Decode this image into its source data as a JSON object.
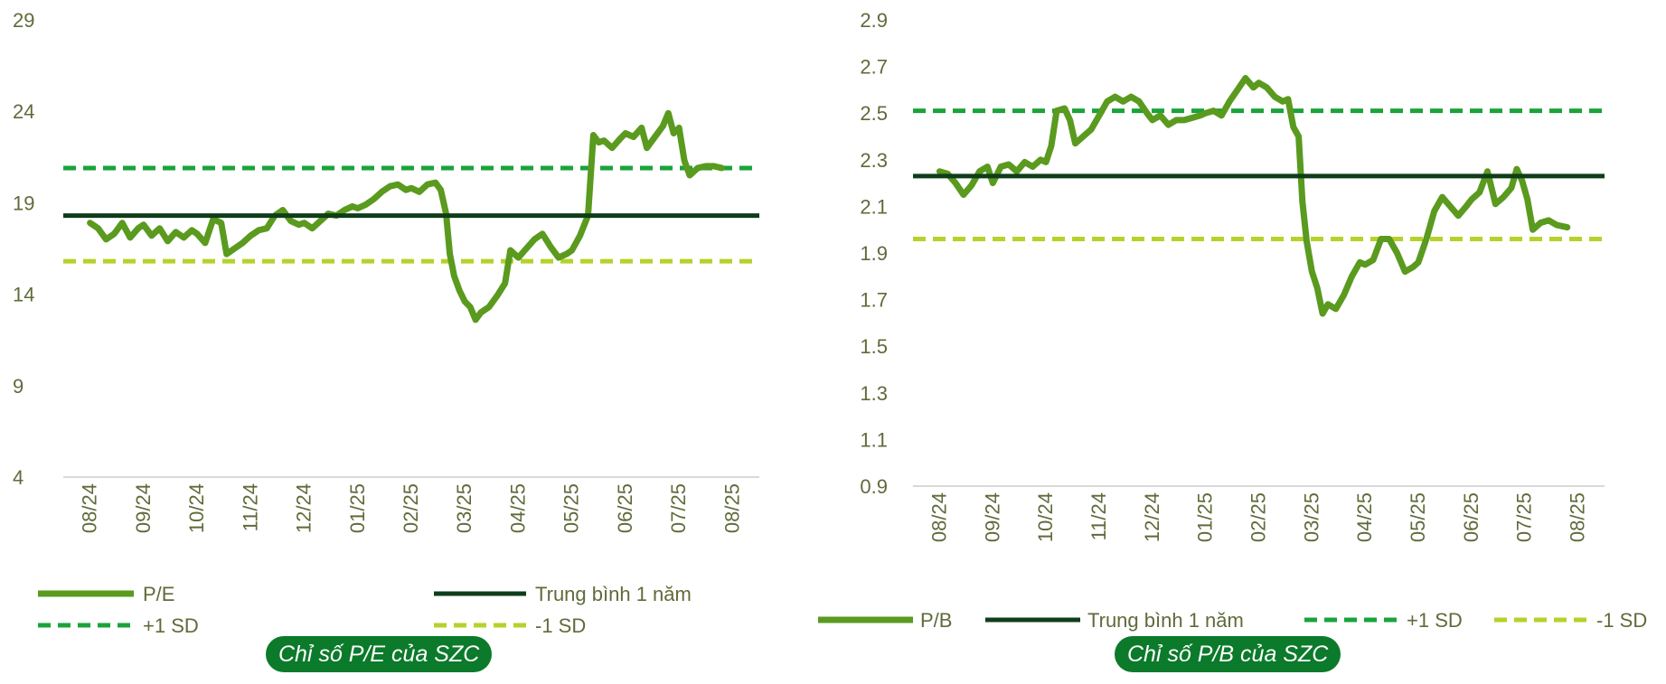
{
  "chart_data": [
    {
      "type": "line",
      "caption": "Chỉ số P/E của SZC",
      "ylim": [
        4,
        29
      ],
      "yticks": [
        "29",
        "24",
        "19",
        "14",
        "9",
        "4"
      ],
      "xticks": [
        "08/24",
        "09/24",
        "10/24",
        "11/24",
        "12/24",
        "01/25",
        "02/25",
        "03/25",
        "04/25",
        "05/25",
        "06/25",
        "07/25",
        "08/25"
      ],
      "legend": {
        "main": "P/E",
        "mean": "Trung bình 1 năm",
        "plus_sd": "+1 SD",
        "minus_sd": "-1 SD"
      },
      "mean": 18.3,
      "plus_sd": 20.9,
      "minus_sd": 15.8,
      "colors": {
        "main": "#5a9a1e",
        "mean": "#0f3d1a",
        "plus_sd": "#1aa33b",
        "minus_sd": "#b5d22a"
      },
      "series_points": [
        [
          0,
          17.9
        ],
        [
          0.15,
          17.6
        ],
        [
          0.3,
          17.0
        ],
        [
          0.45,
          17.3
        ],
        [
          0.6,
          17.9
        ],
        [
          0.75,
          17.1
        ],
        [
          0.9,
          17.6
        ],
        [
          1.0,
          17.8
        ],
        [
          1.15,
          17.2
        ],
        [
          1.3,
          17.6
        ],
        [
          1.45,
          16.9
        ],
        [
          1.6,
          17.4
        ],
        [
          1.75,
          17.1
        ],
        [
          1.9,
          17.5
        ],
        [
          2.0,
          17.3
        ],
        [
          2.15,
          16.8
        ],
        [
          2.3,
          18.1
        ],
        [
          2.45,
          17.9
        ],
        [
          2.55,
          16.2
        ],
        [
          2.7,
          16.5
        ],
        [
          2.85,
          16.8
        ],
        [
          3.0,
          17.2
        ],
        [
          3.15,
          17.5
        ],
        [
          3.3,
          17.6
        ],
        [
          3.45,
          18.3
        ],
        [
          3.6,
          18.6
        ],
        [
          3.75,
          18.0
        ],
        [
          3.9,
          17.8
        ],
        [
          4.0,
          17.9
        ],
        [
          4.15,
          17.6
        ],
        [
          4.3,
          18.0
        ],
        [
          4.45,
          18.4
        ],
        [
          4.6,
          18.3
        ],
        [
          4.75,
          18.6
        ],
        [
          4.9,
          18.8
        ],
        [
          5.0,
          18.7
        ],
        [
          5.15,
          18.9
        ],
        [
          5.3,
          19.2
        ],
        [
          5.45,
          19.6
        ],
        [
          5.6,
          19.9
        ],
        [
          5.75,
          20.0
        ],
        [
          5.9,
          19.7
        ],
        [
          6.0,
          19.8
        ],
        [
          6.15,
          19.6
        ],
        [
          6.3,
          20.0
        ],
        [
          6.45,
          20.1
        ],
        [
          6.55,
          19.7
        ],
        [
          6.65,
          18.4
        ],
        [
          6.72,
          16.2
        ],
        [
          6.8,
          15.0
        ],
        [
          6.9,
          14.2
        ],
        [
          7.0,
          13.6
        ],
        [
          7.1,
          13.3
        ],
        [
          7.2,
          12.6
        ],
        [
          7.3,
          13.0
        ],
        [
          7.45,
          13.3
        ],
        [
          7.6,
          13.9
        ],
        [
          7.75,
          14.6
        ],
        [
          7.85,
          16.4
        ],
        [
          8.0,
          16.0
        ],
        [
          8.15,
          16.5
        ],
        [
          8.3,
          17.0
        ],
        [
          8.45,
          17.3
        ],
        [
          8.6,
          16.6
        ],
        [
          8.75,
          16.0
        ],
        [
          8.9,
          16.2
        ],
        [
          9.0,
          16.4
        ],
        [
          9.15,
          17.2
        ],
        [
          9.3,
          18.3
        ],
        [
          9.4,
          22.7
        ],
        [
          9.5,
          22.3
        ],
        [
          9.6,
          22.4
        ],
        [
          9.75,
          22.0
        ],
        [
          9.9,
          22.5
        ],
        [
          10.0,
          22.8
        ],
        [
          10.15,
          22.6
        ],
        [
          10.3,
          23.1
        ],
        [
          10.4,
          22.0
        ],
        [
          10.55,
          22.6
        ],
        [
          10.7,
          23.2
        ],
        [
          10.8,
          23.9
        ],
        [
          10.9,
          22.8
        ],
        [
          11.0,
          23.1
        ],
        [
          11.1,
          21.3
        ],
        [
          11.2,
          20.5
        ],
        [
          11.35,
          20.9
        ],
        [
          11.5,
          21.0
        ],
        [
          11.65,
          21.0
        ],
        [
          11.8,
          20.9
        ]
      ]
    },
    {
      "type": "line",
      "caption": "Chỉ số P/B của SZC",
      "ylim": [
        0.9,
        2.9
      ],
      "yticks": [
        "2.9",
        "2.7",
        "2.5",
        "2.3",
        "2.1",
        "1.9",
        "1.7",
        "1.5",
        "1.3",
        "1.1",
        "0.9"
      ],
      "xticks": [
        "08/24",
        "09/24",
        "10/24",
        "11/24",
        "12/24",
        "01/25",
        "02/25",
        "03/25",
        "04/25",
        "05/25",
        "06/25",
        "07/25",
        "08/25"
      ],
      "legend": {
        "main": "P/B",
        "mean": "Trung bình 1 năm",
        "plus_sd": "+1 SD",
        "minus_sd": "-1 SD"
      },
      "mean": 2.23,
      "plus_sd": 2.51,
      "minus_sd": 1.96,
      "colors": {
        "main": "#5a9a1e",
        "mean": "#0f3d1a",
        "plus_sd": "#1aa33b",
        "minus_sd": "#b5d22a"
      },
      "series_points": [
        [
          0,
          2.25
        ],
        [
          0.15,
          2.24
        ],
        [
          0.3,
          2.2
        ],
        [
          0.45,
          2.15
        ],
        [
          0.6,
          2.19
        ],
        [
          0.75,
          2.25
        ],
        [
          0.9,
          2.27
        ],
        [
          1.0,
          2.2
        ],
        [
          1.15,
          2.27
        ],
        [
          1.3,
          2.28
        ],
        [
          1.45,
          2.25
        ],
        [
          1.6,
          2.29
        ],
        [
          1.75,
          2.27
        ],
        [
          1.9,
          2.3
        ],
        [
          2.0,
          2.29
        ],
        [
          2.1,
          2.36
        ],
        [
          2.2,
          2.51
        ],
        [
          2.35,
          2.52
        ],
        [
          2.45,
          2.47
        ],
        [
          2.55,
          2.37
        ],
        [
          2.7,
          2.4
        ],
        [
          2.85,
          2.43
        ],
        [
          3.0,
          2.49
        ],
        [
          3.15,
          2.55
        ],
        [
          3.3,
          2.57
        ],
        [
          3.45,
          2.55
        ],
        [
          3.6,
          2.57
        ],
        [
          3.75,
          2.55
        ],
        [
          3.9,
          2.5
        ],
        [
          4.0,
          2.47
        ],
        [
          4.15,
          2.49
        ],
        [
          4.3,
          2.45
        ],
        [
          4.45,
          2.47
        ],
        [
          4.6,
          2.47
        ],
        [
          4.75,
          2.48
        ],
        [
          4.9,
          2.49
        ],
        [
          5.0,
          2.5
        ],
        [
          5.15,
          2.51
        ],
        [
          5.3,
          2.49
        ],
        [
          5.45,
          2.55
        ],
        [
          5.6,
          2.6
        ],
        [
          5.75,
          2.65
        ],
        [
          5.9,
          2.61
        ],
        [
          6.0,
          2.63
        ],
        [
          6.15,
          2.61
        ],
        [
          6.3,
          2.57
        ],
        [
          6.45,
          2.55
        ],
        [
          6.55,
          2.56
        ],
        [
          6.65,
          2.44
        ],
        [
          6.75,
          2.4
        ],
        [
          6.82,
          2.12
        ],
        [
          6.9,
          1.95
        ],
        [
          7.0,
          1.82
        ],
        [
          7.1,
          1.75
        ],
        [
          7.2,
          1.64
        ],
        [
          7.3,
          1.68
        ],
        [
          7.45,
          1.66
        ],
        [
          7.6,
          1.72
        ],
        [
          7.75,
          1.8
        ],
        [
          7.9,
          1.86
        ],
        [
          8.0,
          1.85
        ],
        [
          8.15,
          1.87
        ],
        [
          8.3,
          1.96
        ],
        [
          8.45,
          1.96
        ],
        [
          8.6,
          1.9
        ],
        [
          8.75,
          1.82
        ],
        [
          8.9,
          1.84
        ],
        [
          9.0,
          1.86
        ],
        [
          9.15,
          1.96
        ],
        [
          9.3,
          2.08
        ],
        [
          9.45,
          2.14
        ],
        [
          9.6,
          2.1
        ],
        [
          9.75,
          2.06
        ],
        [
          9.9,
          2.1
        ],
        [
          10.0,
          2.13
        ],
        [
          10.15,
          2.16
        ],
        [
          10.3,
          2.25
        ],
        [
          10.45,
          2.11
        ],
        [
          10.6,
          2.14
        ],
        [
          10.75,
          2.18
        ],
        [
          10.85,
          2.26
        ],
        [
          10.95,
          2.21
        ],
        [
          11.05,
          2.13
        ],
        [
          11.15,
          2.0
        ],
        [
          11.3,
          2.03
        ],
        [
          11.45,
          2.04
        ],
        [
          11.6,
          2.02
        ],
        [
          11.8,
          2.01
        ]
      ]
    }
  ]
}
